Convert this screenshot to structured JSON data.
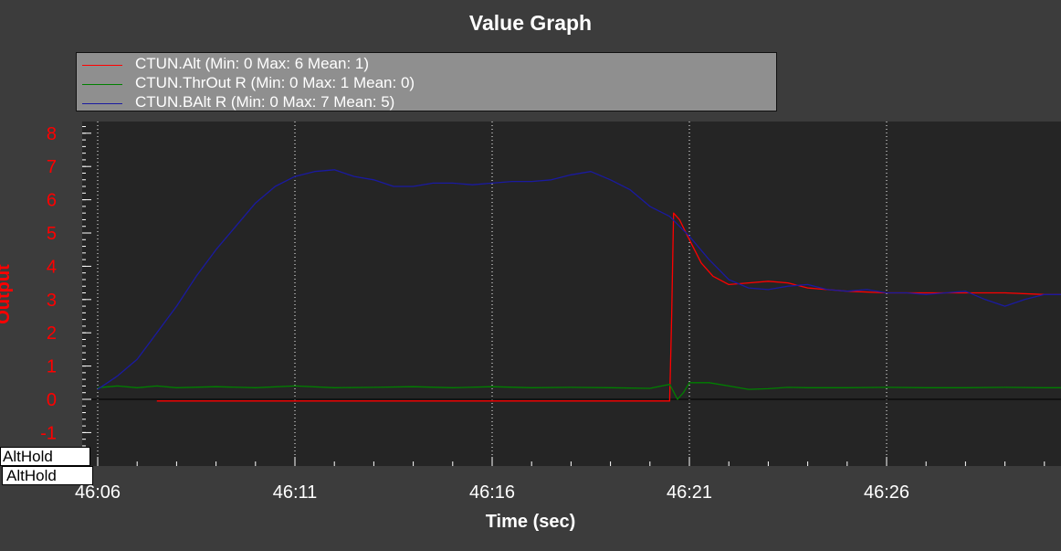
{
  "window": {
    "title": "Value Graph"
  },
  "legend": {
    "items": [
      {
        "label": "CTUN.Alt (Min: 0 Max: 6 Mean: 1)",
        "color": "#ff0000"
      },
      {
        "label": "CTUN.ThrOut R (Min: 0 Max: 1 Mean: 0)",
        "color": "#008000"
      },
      {
        "label": "CTUN.BAlt R (Min: 0 Max: 7 Mean: 5)",
        "color": "#1a1aa0"
      }
    ]
  },
  "mode_labels": [
    "AltHold",
    "AltHold"
  ],
  "chart_data": {
    "type": "line",
    "title": "Value Graph",
    "xlabel": "Time (sec)",
    "ylabel": "Output",
    "x_tick_labels": [
      "46:06",
      "46:11",
      "46:16",
      "46:21",
      "46:26"
    ],
    "x_tick_seconds": [
      0,
      5,
      10,
      15,
      20
    ],
    "y_ticks": [
      -1,
      0,
      1,
      2,
      3,
      4,
      5,
      6,
      7,
      8
    ],
    "xlim": [
      0,
      25
    ],
    "ylim": [
      -2,
      8.3
    ],
    "grid": true,
    "legend_position": "top-left",
    "colors": {
      "background": "#3c3c3c",
      "plot_area": "#252525",
      "axis_text": "#ff0000",
      "grid": "#ffffff"
    },
    "series": [
      {
        "name": "CTUN.Alt",
        "color": "#ff0000",
        "x": [
          1.5,
          5,
          10,
          14.5,
          14.55,
          14.6,
          14.75,
          15,
          15.3,
          15.6,
          16,
          16.5,
          17,
          17.5,
          18,
          19,
          20,
          21,
          22,
          23,
          24,
          25
        ],
        "y": [
          -0.05,
          -0.05,
          -0.05,
          -0.05,
          2.5,
          5.6,
          5.4,
          4.8,
          4.1,
          3.7,
          3.45,
          3.5,
          3.55,
          3.5,
          3.35,
          3.25,
          3.2,
          3.2,
          3.2,
          3.2,
          3.15,
          3.15
        ]
      },
      {
        "name": "CTUN.ThrOut R",
        "color": "#008000",
        "x": [
          0,
          0.5,
          1,
          1.5,
          2,
          3,
          4,
          5,
          6,
          7,
          8,
          9,
          10,
          11,
          12,
          13,
          14,
          14.5,
          14.7,
          14.85,
          15,
          15.5,
          16,
          16.5,
          17,
          17.5,
          18,
          19,
          20,
          21,
          22,
          23,
          24,
          25
        ],
        "y": [
          0.35,
          0.4,
          0.35,
          0.4,
          0.35,
          0.38,
          0.35,
          0.4,
          0.35,
          0.36,
          0.38,
          0.35,
          0.38,
          0.35,
          0.36,
          0.35,
          0.33,
          0.45,
          0.0,
          0.2,
          0.5,
          0.5,
          0.4,
          0.3,
          0.32,
          0.36,
          0.35,
          0.35,
          0.36,
          0.35,
          0.35,
          0.36,
          0.35,
          0.35
        ]
      },
      {
        "name": "CTUN.BAlt R",
        "color": "#1a1aa0",
        "x": [
          0,
          0.5,
          1,
          1.5,
          2,
          2.5,
          3,
          3.5,
          4,
          4.5,
          5,
          5.5,
          6,
          6.5,
          7,
          7.5,
          8,
          8.5,
          9,
          9.5,
          10,
          10.5,
          11,
          11.5,
          12,
          12.5,
          13,
          13.5,
          14,
          14.5,
          15,
          15.5,
          16,
          16.5,
          17,
          17.5,
          18,
          18.5,
          19,
          19.5,
          20,
          20.5,
          21,
          21.5,
          22,
          22.5,
          23,
          23.5,
          24,
          24.5,
          25
        ],
        "y": [
          0.3,
          0.7,
          1.2,
          2.0,
          2.8,
          3.7,
          4.5,
          5.2,
          5.9,
          6.4,
          6.7,
          6.85,
          6.9,
          6.7,
          6.6,
          6.4,
          6.4,
          6.5,
          6.5,
          6.45,
          6.5,
          6.55,
          6.55,
          6.6,
          6.75,
          6.85,
          6.6,
          6.3,
          5.8,
          5.5,
          4.9,
          4.2,
          3.6,
          3.35,
          3.3,
          3.4,
          3.45,
          3.3,
          3.25,
          3.3,
          3.2,
          3.2,
          3.15,
          3.2,
          3.25,
          3.0,
          2.8,
          3.0,
          3.15,
          3.15,
          3.2
        ]
      }
    ]
  }
}
